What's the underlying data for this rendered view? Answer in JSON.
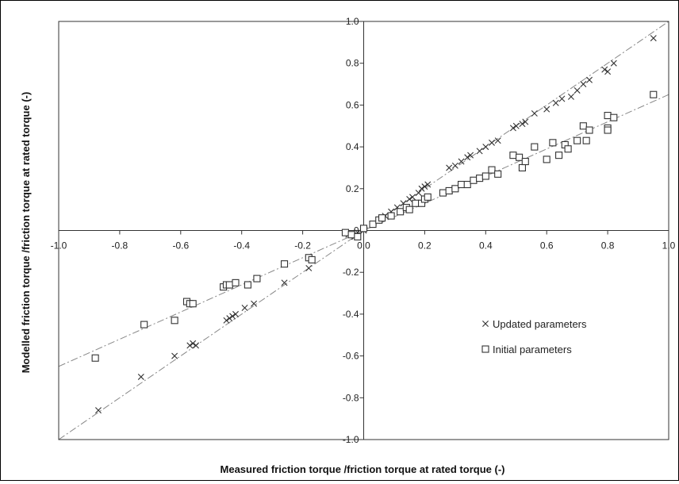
{
  "chart_data": {
    "type": "scatter",
    "title": "",
    "xlabel": "Measured friction torque /friction torque at rated torque (-)",
    "ylabel": "Modelled friction torque /friction torque at rated torque (-)",
    "xlim": [
      -1.0,
      1.0
    ],
    "ylim": [
      -1.0,
      1.0
    ],
    "grid": false,
    "x_ticks": [
      "-1.0",
      "-0.8",
      "-0.6",
      "-0.4",
      "-0.2",
      "0.0",
      "0.2",
      "0.4",
      "0.6",
      "0.8",
      "1.0"
    ],
    "y_ticks": [
      "-1.0",
      "-0.8",
      "-0.6",
      "-0.4",
      "-0.2",
      "0",
      "0.2",
      "0.4",
      "0.6",
      "0.8",
      "1.0"
    ],
    "legend_position": "lower-right",
    "series": [
      {
        "name": "Updated parameters",
        "marker": "x",
        "trendline_slope": 1.0,
        "points": [
          [
            -0.87,
            -0.86
          ],
          [
            -0.73,
            -0.7
          ],
          [
            -0.62,
            -0.6
          ],
          [
            -0.57,
            -0.55
          ],
          [
            -0.56,
            -0.54
          ],
          [
            -0.55,
            -0.55
          ],
          [
            -0.45,
            -0.43
          ],
          [
            -0.44,
            -0.42
          ],
          [
            -0.43,
            -0.41
          ],
          [
            -0.42,
            -0.4
          ],
          [
            -0.39,
            -0.37
          ],
          [
            -0.36,
            -0.35
          ],
          [
            -0.26,
            -0.25
          ],
          [
            -0.18,
            -0.18
          ],
          [
            -0.05,
            -0.02
          ],
          [
            -0.03,
            -0.03
          ],
          [
            -0.02,
            -0.01
          ],
          [
            0.0,
            0.0
          ],
          [
            0.03,
            0.03
          ],
          [
            0.05,
            0.05
          ],
          [
            0.07,
            0.07
          ],
          [
            0.09,
            0.09
          ],
          [
            0.11,
            0.11
          ],
          [
            0.13,
            0.13
          ],
          [
            0.15,
            0.15
          ],
          [
            0.16,
            0.16
          ],
          [
            0.18,
            0.18
          ],
          [
            0.19,
            0.2
          ],
          [
            0.2,
            0.21
          ],
          [
            0.21,
            0.22
          ],
          [
            0.28,
            0.3
          ],
          [
            0.3,
            0.31
          ],
          [
            0.32,
            0.33
          ],
          [
            0.34,
            0.35
          ],
          [
            0.35,
            0.36
          ],
          [
            0.38,
            0.38
          ],
          [
            0.4,
            0.4
          ],
          [
            0.42,
            0.42
          ],
          [
            0.44,
            0.43
          ],
          [
            0.49,
            0.49
          ],
          [
            0.5,
            0.5
          ],
          [
            0.52,
            0.51
          ],
          [
            0.53,
            0.52
          ],
          [
            0.56,
            0.56
          ],
          [
            0.6,
            0.58
          ],
          [
            0.63,
            0.61
          ],
          [
            0.65,
            0.63
          ],
          [
            0.68,
            0.64
          ],
          [
            0.7,
            0.67
          ],
          [
            0.72,
            0.7
          ],
          [
            0.74,
            0.72
          ],
          [
            0.79,
            0.77
          ],
          [
            0.8,
            0.76
          ],
          [
            0.82,
            0.8
          ],
          [
            0.95,
            0.92
          ]
        ]
      },
      {
        "name": "Initial parameters",
        "marker": "square",
        "trendline_slope": 0.65,
        "points": [
          [
            -0.88,
            -0.61
          ],
          [
            -0.72,
            -0.45
          ],
          [
            -0.62,
            -0.43
          ],
          [
            -0.58,
            -0.34
          ],
          [
            -0.57,
            -0.35
          ],
          [
            -0.56,
            -0.35
          ],
          [
            -0.46,
            -0.27
          ],
          [
            -0.45,
            -0.26
          ],
          [
            -0.44,
            -0.26
          ],
          [
            -0.42,
            -0.25
          ],
          [
            -0.38,
            -0.26
          ],
          [
            -0.35,
            -0.23
          ],
          [
            -0.26,
            -0.16
          ],
          [
            -0.18,
            -0.13
          ],
          [
            -0.17,
            -0.14
          ],
          [
            -0.06,
            -0.01
          ],
          [
            -0.04,
            -0.02
          ],
          [
            -0.02,
            -0.03
          ],
          [
            0.0,
            0.01
          ],
          [
            0.03,
            0.03
          ],
          [
            0.05,
            0.05
          ],
          [
            0.06,
            0.06
          ],
          [
            0.09,
            0.07
          ],
          [
            0.12,
            0.09
          ],
          [
            0.14,
            0.11
          ],
          [
            0.15,
            0.1
          ],
          [
            0.17,
            0.13
          ],
          [
            0.19,
            0.13
          ],
          [
            0.2,
            0.15
          ],
          [
            0.21,
            0.16
          ],
          [
            0.26,
            0.18
          ],
          [
            0.28,
            0.19
          ],
          [
            0.3,
            0.2
          ],
          [
            0.32,
            0.22
          ],
          [
            0.34,
            0.22
          ],
          [
            0.36,
            0.24
          ],
          [
            0.38,
            0.25
          ],
          [
            0.4,
            0.26
          ],
          [
            0.42,
            0.29
          ],
          [
            0.44,
            0.27
          ],
          [
            0.49,
            0.36
          ],
          [
            0.51,
            0.35
          ],
          [
            0.52,
            0.3
          ],
          [
            0.53,
            0.33
          ],
          [
            0.56,
            0.4
          ],
          [
            0.6,
            0.34
          ],
          [
            0.62,
            0.42
          ],
          [
            0.64,
            0.36
          ],
          [
            0.66,
            0.41
          ],
          [
            0.67,
            0.39
          ],
          [
            0.7,
            0.43
          ],
          [
            0.72,
            0.5
          ],
          [
            0.73,
            0.43
          ],
          [
            0.74,
            0.48
          ],
          [
            0.8,
            0.55
          ],
          [
            0.8,
            0.49
          ],
          [
            0.8,
            0.48
          ],
          [
            0.82,
            0.54
          ],
          [
            0.95,
            0.65
          ]
        ]
      }
    ]
  }
}
